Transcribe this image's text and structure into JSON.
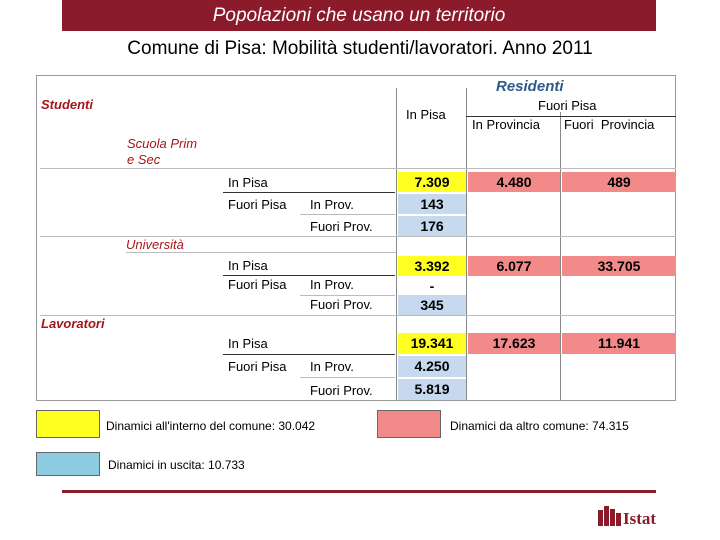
{
  "title": "Popolazioni che usano un territorio",
  "subtitle": "Comune di Pisa: Mobilità studenti/lavoratori. Anno 2011",
  "headers": {
    "residenti": "Residenti",
    "in_pisa": "In Pisa",
    "fuori_pisa": "Fuori Pisa",
    "in_provincia": "In Provincia",
    "fuori_provincia": "Fuori  Provincia"
  },
  "sections": {
    "studenti": "Studenti",
    "scuola_line1": "Scuola Prim",
    "scuola_line2": "e Sec",
    "universita": "Università",
    "lavoratori": "Lavoratori"
  },
  "row_labels": {
    "in_pisa": "In Pisa",
    "fuori_pisa": "Fuori Pisa",
    "in_prov": "In Prov.",
    "fuori_prov": "Fuori Prov."
  },
  "values": {
    "scuola": {
      "in_pisa": [
        "7.309",
        "4.480",
        "489"
      ],
      "in_prov": "143",
      "fuori_prov": "176"
    },
    "universita": {
      "in_pisa": [
        "3.392",
        "6.077",
        "33.705"
      ],
      "in_prov": "-",
      "fuori_prov": "345"
    },
    "lavoratori": {
      "in_pisa": [
        "19.341",
        "17.623",
        "11.941"
      ],
      "in_prov": "4.250",
      "fuori_prov": "5.819"
    }
  },
  "legend": {
    "yellow": "Dinamici all'interno del comune: 30.042",
    "red": "Dinamici da altro comune: 74.315",
    "blue": "Dinamici in uscita: 10.733"
  },
  "colors": {
    "brand": "#8b1a2b",
    "yellow": "#ffff22",
    "red": "#f28a8a",
    "blue": "#c6d9ee",
    "legend_blue": "#8ccbe0"
  },
  "logo": {
    "text": "Istat"
  }
}
